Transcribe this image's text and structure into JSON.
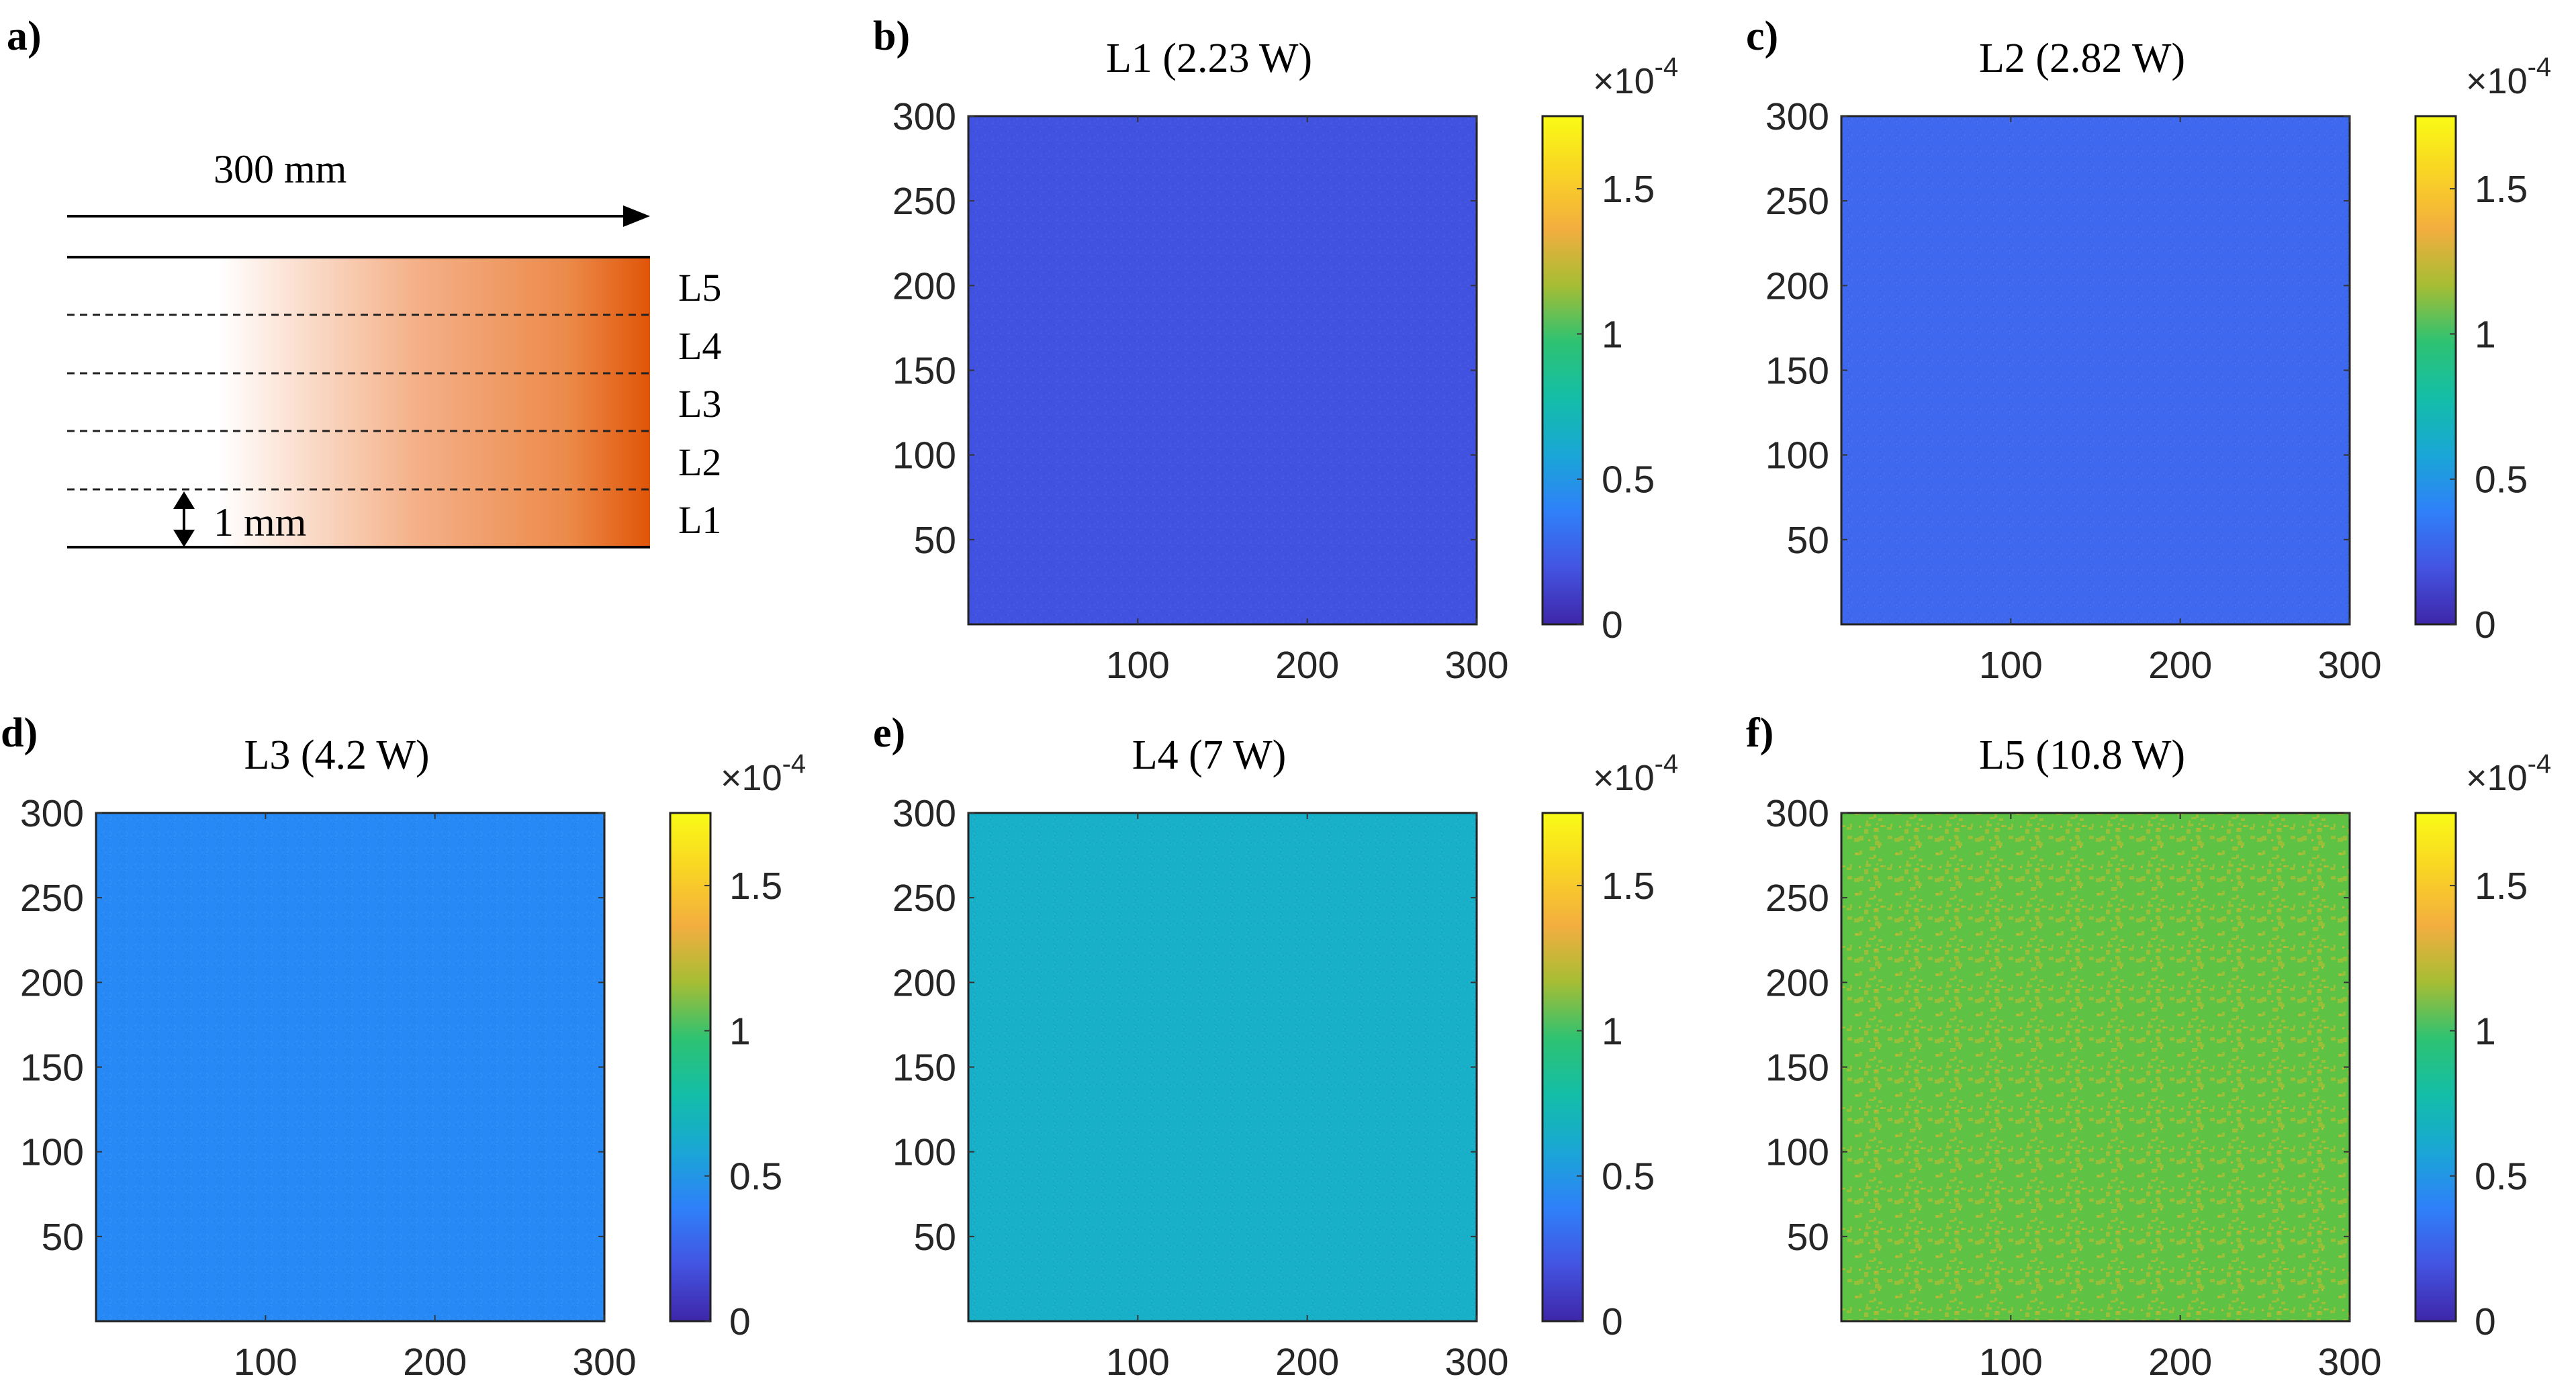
{
  "figure": {
    "colorbar_multiplier_base": "×10",
    "colorbar_multiplier_exponent": "-4",
    "colormap": [
      "#3e26a8",
      "#4354e1",
      "#2f80f9",
      "#1aa6d6",
      "#13bea8",
      "#2ec272",
      "#a6bd34",
      "#f3ae3f",
      "#f9d424",
      "#f9fb15"
    ]
  },
  "schematic": {
    "panel_label": "a)",
    "length_label": "300 mm",
    "thickness_label": "1 mm",
    "layers": [
      "L5",
      "L4",
      "L3",
      "L2",
      "L1"
    ],
    "gradient_colors": [
      "#ffffff",
      "#e05508"
    ]
  },
  "chart_data": [
    {
      "type": "heatmap",
      "panel_label": "b)",
      "title": "L1 (2.23 W)",
      "x_range": [
        0,
        300
      ],
      "y_range": [
        0,
        300
      ],
      "x_ticks": [
        100,
        200,
        300
      ],
      "y_ticks": [
        50,
        100,
        150,
        200,
        250,
        300
      ],
      "colorbar_range": [
        0,
        1.75
      ],
      "colorbar_ticks": [
        "0",
        "0.5",
        "1",
        "1.5"
      ],
      "mean_value": 0.22,
      "noise_amplitude": 0.015,
      "fill_color": "#4151e0"
    },
    {
      "type": "heatmap",
      "panel_label": "c)",
      "title": "L2 (2.82 W)",
      "x_range": [
        0,
        300
      ],
      "y_range": [
        0,
        300
      ],
      "x_ticks": [
        100,
        200,
        300
      ],
      "y_ticks": [
        50,
        100,
        150,
        200,
        250,
        300
      ],
      "colorbar_range": [
        0,
        1.75
      ],
      "colorbar_ticks": [
        "0",
        "0.5",
        "1",
        "1.5"
      ],
      "mean_value": 0.3,
      "noise_amplitude": 0.015,
      "fill_color": "#3d68ef"
    },
    {
      "type": "heatmap",
      "panel_label": "d)",
      "title": "L3 (4.2 W)",
      "x_range": [
        0,
        300
      ],
      "y_range": [
        0,
        300
      ],
      "x_ticks": [
        100,
        200,
        300
      ],
      "y_ticks": [
        50,
        100,
        150,
        200,
        250,
        300
      ],
      "colorbar_range": [
        0,
        1.75
      ],
      "colorbar_ticks": [
        "0",
        "0.5",
        "1",
        "1.5"
      ],
      "mean_value": 0.45,
      "noise_amplitude": 0.015,
      "fill_color": "#2689f5"
    },
    {
      "type": "heatmap",
      "panel_label": "e)",
      "title": "L4 (7 W)",
      "x_range": [
        0,
        300
      ],
      "y_range": [
        0,
        300
      ],
      "x_ticks": [
        100,
        200,
        300
      ],
      "y_ticks": [
        50,
        100,
        150,
        200,
        250,
        300
      ],
      "colorbar_range": [
        0,
        1.75
      ],
      "colorbar_ticks": [
        "0",
        "0.5",
        "1",
        "1.5"
      ],
      "mean_value": 0.72,
      "noise_amplitude": 0.015,
      "fill_color": "#18b0c9"
    },
    {
      "type": "heatmap",
      "panel_label": "f)",
      "title": "L5 (10.8 W)",
      "x_range": [
        0,
        300
      ],
      "y_range": [
        0,
        300
      ],
      "x_ticks": [
        100,
        200,
        300
      ],
      "y_ticks": [
        50,
        100,
        150,
        200,
        250,
        300
      ],
      "colorbar_range": [
        0,
        1.75
      ],
      "colorbar_ticks": [
        "0",
        "0.5",
        "1",
        "1.5"
      ],
      "mean_value": 1.13,
      "noise_amplitude": 0.12,
      "fill_color": "#5ec244",
      "alt_color": "#99bf38"
    }
  ]
}
